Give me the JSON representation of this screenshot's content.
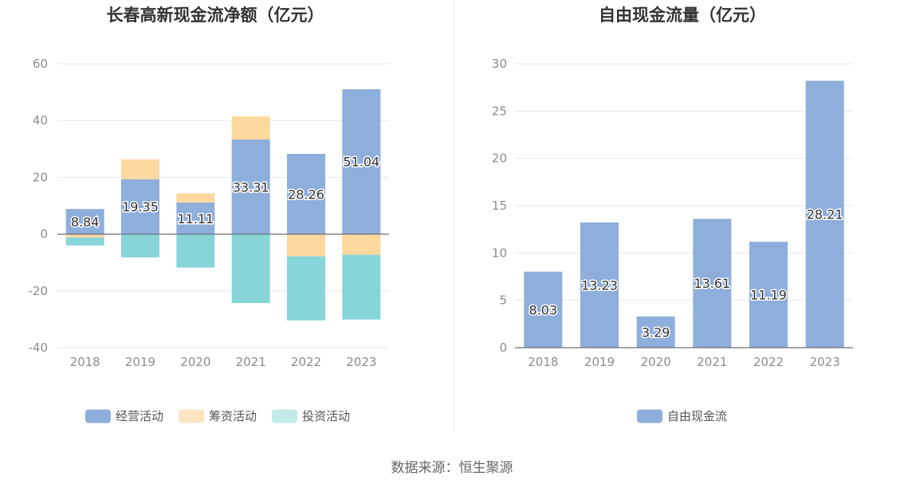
{
  "chart_data": [
    {
      "type": "bar",
      "stacked": true,
      "title": "长春高新现金流净额（亿元）",
      "categories": [
        "2018",
        "2019",
        "2020",
        "2021",
        "2022",
        "2023"
      ],
      "ylim": [
        -40,
        60
      ],
      "yticks": [
        60,
        40,
        20,
        0,
        -20,
        -40
      ],
      "grid": true,
      "legend_position": "bottom",
      "series": [
        {
          "name": "经营活动",
          "color": "#8eaedb",
          "values": [
            8.84,
            19.35,
            11.11,
            33.31,
            28.26,
            51.04
          ],
          "labels": [
            "8.84",
            "19.35",
            "11.11",
            "33.31",
            "28.26",
            "51.04"
          ]
        },
        {
          "name": "筹资活动",
          "color": "#fdd89f",
          "legend_color": "#fde5c4",
          "values": [
            -1.2,
            7.0,
            3.3,
            8.2,
            -7.8,
            -7.3
          ]
        },
        {
          "name": "投资活动",
          "color": "#88d5d9",
          "legend_color": "#c3ebec",
          "values": [
            -2.8,
            -8.2,
            -11.8,
            -24.3,
            -22.6,
            -22.8
          ]
        }
      ]
    },
    {
      "type": "bar",
      "title": "自由现金流量（亿元）",
      "categories": [
        "2018",
        "2019",
        "2020",
        "2021",
        "2022",
        "2023"
      ],
      "ylim": [
        0,
        30
      ],
      "yticks": [
        30,
        25,
        20,
        15,
        10,
        5,
        0
      ],
      "grid": true,
      "legend_position": "bottom",
      "series": [
        {
          "name": "自由现金流",
          "color": "#8eaedb",
          "values": [
            8.03,
            13.23,
            3.29,
            13.61,
            11.19,
            28.21
          ],
          "labels": [
            "8.03",
            "13.23",
            "3.29",
            "13.61",
            "11.19",
            "28.21"
          ]
        }
      ]
    }
  ],
  "source": "数据来源：恒生聚源"
}
